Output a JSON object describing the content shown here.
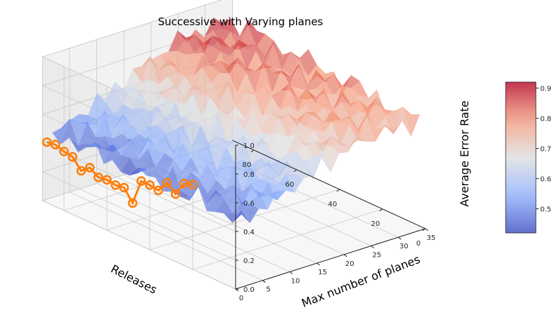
{
  "chart_data": {
    "type": "surface3d",
    "title": "Successive with Varying planes",
    "xlabel": "Releases",
    "ylabel": "Max number of planes",
    "zlabel": "Average Error Rate",
    "x_ticks": [
      "0",
      "20",
      "40",
      "60",
      "80"
    ],
    "y_ticks": [
      "0",
      "5",
      "10",
      "15",
      "20",
      "25",
      "30",
      "35"
    ],
    "z_ticks": [
      "0.0",
      "0.2",
      "0.4",
      "0.6",
      "0.8",
      "1.0"
    ],
    "xlim": [
      0,
      90
    ],
    "ylim": [
      0,
      35
    ],
    "zlim": [
      0,
      1
    ],
    "colorbar": {
      "colormap": "coolwarm",
      "min": 0.42,
      "max": 0.92,
      "ticks": [
        "0.5",
        "0.6",
        "0.7",
        "0.8",
        "0.9"
      ]
    },
    "surface_trend": "error rate rises from about 0.45 at low plane counts to about 0.9 at high plane counts and releases",
    "orange_series": {
      "color": "#ff7f0e",
      "marker": "o",
      "points": [
        {
          "x": 88,
          "z": 0.42
        },
        {
          "x": 84,
          "z": 0.43
        },
        {
          "x": 80,
          "z": 0.41
        },
        {
          "x": 76,
          "z": 0.4
        },
        {
          "x": 72,
          "z": 0.33
        },
        {
          "x": 68,
          "z": 0.38
        },
        {
          "x": 64,
          "z": 0.34
        },
        {
          "x": 60,
          "z": 0.35
        },
        {
          "x": 56,
          "z": 0.34
        },
        {
          "x": 52,
          "z": 0.35
        },
        {
          "x": 48,
          "z": 0.27
        },
        {
          "x": 44,
          "z": 0.45
        },
        {
          "x": 40,
          "z": 0.45
        },
        {
          "x": 36,
          "z": 0.44
        },
        {
          "x": 32,
          "z": 0.52
        },
        {
          "x": 28,
          "z": 0.47
        },
        {
          "x": 24,
          "z": 0.57
        },
        {
          "x": 20,
          "z": 0.59
        }
      ]
    }
  }
}
